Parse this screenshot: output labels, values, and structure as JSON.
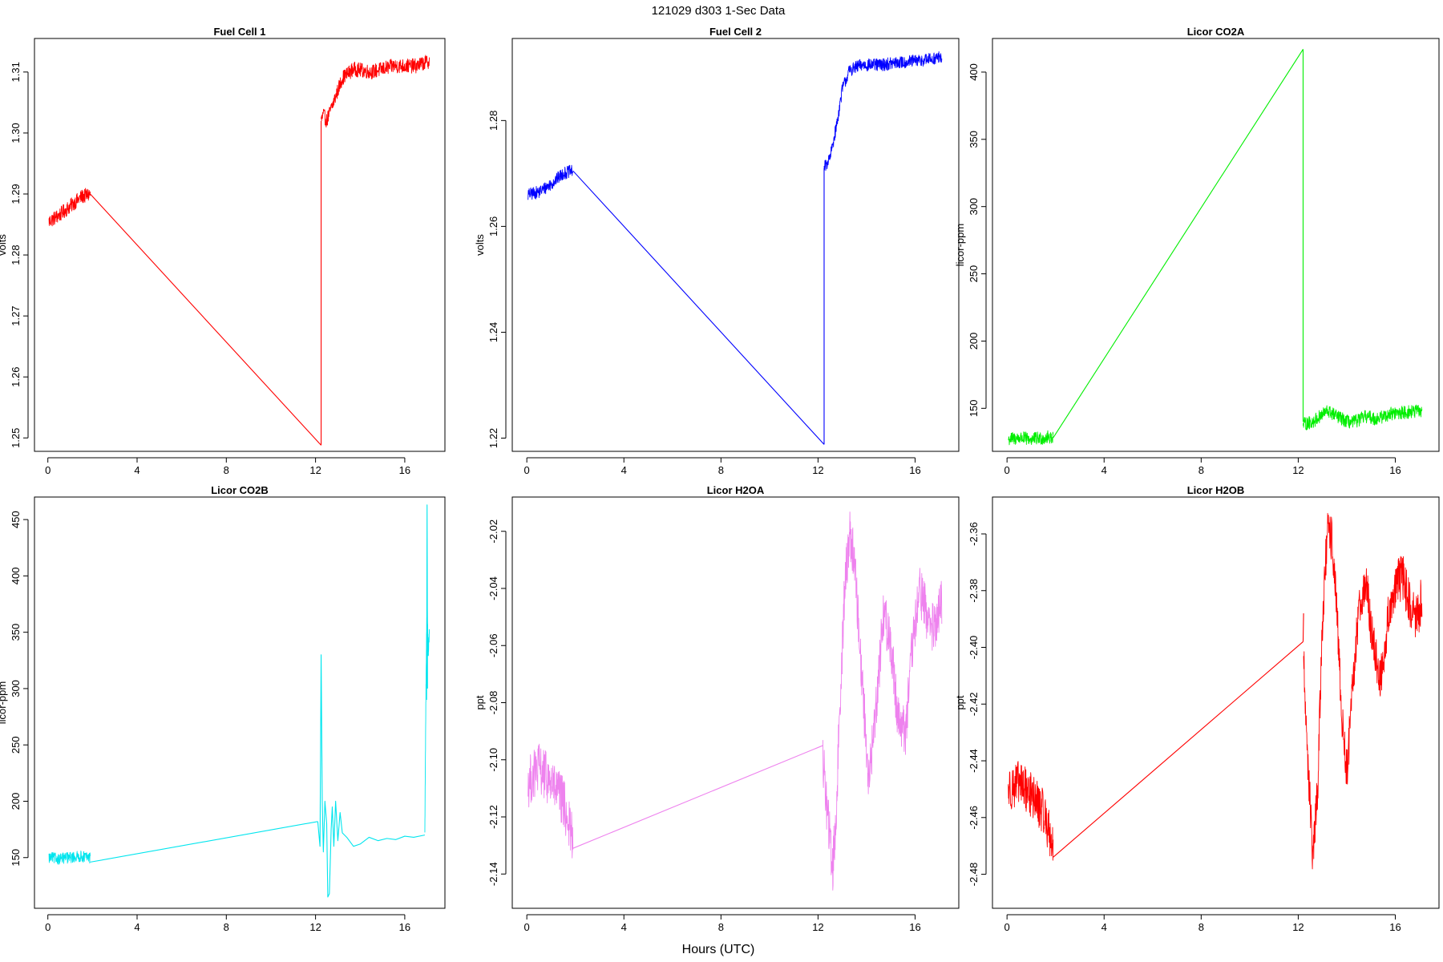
{
  "figure": {
    "title": "121029   d303   1-Sec Data",
    "xlabel": "Hours (UTC)"
  },
  "chart_data": [
    {
      "type": "line",
      "title": "Fuel Cell 1",
      "ylabel": "volts",
      "color": "#ff0000",
      "xlim": [
        -0.6,
        17.8
      ],
      "ylim": [
        1.2478,
        1.3155
      ],
      "xticks": [
        0,
        4,
        8,
        12,
        16
      ],
      "xtick_labels": [
        "0",
        "4",
        "8",
        "12",
        "16"
      ],
      "yticks": [
        1.25,
        1.26,
        1.27,
        1.28,
        1.29,
        1.3,
        1.31
      ],
      "ytick_labels": [
        "1.25",
        "1.26",
        "1.27",
        "1.28",
        "1.29",
        "1.30",
        "1.31"
      ],
      "noise": 0.0012,
      "segments": [
        {
          "kind": "noisy",
          "x": [
            0.05,
            0.5,
            1.0,
            1.5,
            1.9
          ],
          "y": [
            1.2855,
            1.2865,
            1.288,
            1.2895,
            1.29
          ]
        },
        {
          "kind": "line",
          "x": [
            1.9,
            12.25
          ],
          "y": [
            1.29,
            1.2488
          ]
        },
        {
          "kind": "line",
          "x": [
            12.25,
            12.25
          ],
          "y": [
            1.2488,
            1.302
          ]
        },
        {
          "kind": "noisy",
          "x": [
            12.25,
            12.35,
            12.5,
            12.8,
            13.2,
            13.7,
            14.5,
            15.5,
            16.5,
            17.1
          ],
          "y": [
            1.302,
            1.303,
            1.302,
            1.305,
            1.309,
            1.3105,
            1.31,
            1.311,
            1.311,
            1.3118
          ]
        }
      ]
    },
    {
      "type": "line",
      "title": "Fuel Cell 2",
      "ylabel": "volts",
      "color": "#0000ff",
      "xlim": [
        -0.6,
        17.8
      ],
      "ylim": [
        1.2175,
        1.2955
      ],
      "xticks": [
        0,
        4,
        8,
        12,
        16
      ],
      "xtick_labels": [
        "0",
        "4",
        "8",
        "12",
        "16"
      ],
      "yticks": [
        1.22,
        1.24,
        1.26,
        1.28
      ],
      "ytick_labels": [
        "1.22",
        "1.24",
        "1.26",
        "1.28"
      ],
      "noise": 0.0012,
      "segments": [
        {
          "kind": "noisy",
          "x": [
            0.05,
            0.5,
            1.0,
            1.5,
            1.9
          ],
          "y": [
            1.266,
            1.2665,
            1.268,
            1.27,
            1.2705
          ]
        },
        {
          "kind": "line",
          "x": [
            1.9,
            12.25
          ],
          "y": [
            1.2705,
            1.2188
          ]
        },
        {
          "kind": "line",
          "x": [
            12.25,
            12.25
          ],
          "y": [
            1.2188,
            1.271
          ]
        },
        {
          "kind": "noisy",
          "x": [
            12.25,
            12.5,
            12.8,
            13.0,
            13.3,
            13.8,
            14.5,
            15.5,
            16.5,
            17.1
          ],
          "y": [
            1.271,
            1.273,
            1.28,
            1.286,
            1.2895,
            1.2905,
            1.2905,
            1.291,
            1.2915,
            1.292
          ]
        }
      ]
    },
    {
      "type": "line",
      "title": "Licor CO2A",
      "ylabel": "licor-ppm",
      "color": "#00ee00",
      "xlim": [
        -0.6,
        17.8
      ],
      "ylim": [
        118,
        425
      ],
      "xticks": [
        0,
        4,
        8,
        12,
        16
      ],
      "xtick_labels": [
        "0",
        "4",
        "8",
        "12",
        "16"
      ],
      "yticks": [
        150,
        200,
        250,
        300,
        350,
        400
      ],
      "ytick_labels": [
        "150",
        "200",
        "250",
        "300",
        "350",
        "400"
      ],
      "noise": 5,
      "segments": [
        {
          "kind": "noisy",
          "x": [
            0.05,
            0.5,
            1.0,
            1.5,
            1.9
          ],
          "y": [
            127,
            128,
            127,
            128,
            129
          ]
        },
        {
          "kind": "line",
          "x": [
            1.9,
            12.2
          ],
          "y": [
            128,
            417
          ]
        },
        {
          "kind": "line",
          "x": [
            12.2,
            12.2
          ],
          "y": [
            417,
            140
          ]
        },
        {
          "kind": "noisy",
          "x": [
            12.2,
            12.6,
            13.2,
            13.8,
            14.2,
            14.8,
            15.2,
            15.8,
            16.4,
            17.1
          ],
          "y": [
            138,
            140,
            148,
            142,
            139,
            144,
            142,
            146,
            147,
            148
          ]
        }
      ]
    },
    {
      "type": "line",
      "title": "Licor CO2B",
      "ylabel": "licor-ppm",
      "color": "#00e5ee",
      "xlim": [
        -0.6,
        17.8
      ],
      "ylim": [
        105,
        470
      ],
      "xticks": [
        0,
        4,
        8,
        12,
        16
      ],
      "xtick_labels": [
        "0",
        "4",
        "8",
        "12",
        "16"
      ],
      "yticks": [
        150,
        200,
        250,
        300,
        350,
        400,
        450
      ],
      "ytick_labels": [
        "150",
        "200",
        "250",
        "300",
        "350",
        "400",
        "450"
      ],
      "noise": 5,
      "segments": [
        {
          "kind": "noisy",
          "x": [
            0.05,
            0.5,
            1.0,
            1.5,
            1.9
          ],
          "y": [
            150,
            149,
            150,
            151,
            150
          ]
        },
        {
          "kind": "line",
          "x": [
            1.9,
            12.1
          ],
          "y": [
            146,
            182
          ]
        },
        {
          "kind": "line",
          "x": [
            12.1,
            12.2,
            12.25,
            12.3,
            12.35,
            12.42,
            12.5,
            12.55,
            12.62,
            12.7,
            12.75,
            12.82,
            12.9,
            13.0,
            13.1,
            13.2,
            13.4,
            13.7,
            14.0,
            14.4,
            14.8,
            15.2,
            15.6,
            16.0,
            16.4,
            16.9
          ],
          "y": [
            182,
            160,
            330,
            200,
            155,
            200,
            180,
            115,
            118,
            175,
            195,
            160,
            200,
            165,
            190,
            172,
            168,
            160,
            162,
            168,
            165,
            167,
            166,
            169,
            168,
            170
          ]
        },
        {
          "kind": "noisy",
          "x": [
            16.9,
            16.95,
            17.0,
            17.05,
            17.1
          ],
          "y": [
            175,
            300,
            380,
            330,
            350
          ]
        },
        {
          "kind": "line",
          "x": [
            16.98,
            17.0,
            17.02
          ],
          "y": [
            290,
            463,
            300
          ]
        }
      ]
    },
    {
      "type": "line",
      "title": "Licor H2OA",
      "ylabel": "ppt",
      "color": "#ee82ee",
      "xlim": [
        -0.6,
        17.8
      ],
      "ylim": [
        -2.152,
        -2.008
      ],
      "xticks": [
        0,
        4,
        8,
        12,
        16
      ],
      "xtick_labels": [
        "0",
        "4",
        "8",
        "12",
        "16"
      ],
      "yticks": [
        -2.14,
        -2.12,
        -2.1,
        -2.08,
        -2.06,
        -2.04,
        -2.02
      ],
      "ytick_labels": [
        "-2.14",
        "-2.12",
        "-2.10",
        "-2.08",
        "-2.06",
        "-2.04",
        "-2.02"
      ],
      "noise": 0.009,
      "segments": [
        {
          "kind": "noisy",
          "x": [
            0.05,
            0.5,
            1.0,
            1.5,
            1.9
          ],
          "y": [
            -2.108,
            -2.103,
            -2.108,
            -2.115,
            -2.128
          ]
        },
        {
          "kind": "line",
          "x": [
            1.9,
            12.2
          ],
          "y": [
            -2.131,
            -2.095
          ]
        },
        {
          "kind": "noisy",
          "x": [
            12.2,
            12.4,
            12.6,
            12.75,
            12.9,
            13.1,
            13.3,
            13.5,
            13.8,
            14.1,
            14.4,
            14.7,
            15.0,
            15.3,
            15.6,
            15.9,
            16.2,
            16.5,
            16.8,
            17.1
          ],
          "y": [
            -2.1,
            -2.12,
            -2.138,
            -2.12,
            -2.08,
            -2.04,
            -2.02,
            -2.03,
            -2.07,
            -2.108,
            -2.08,
            -2.048,
            -2.06,
            -2.085,
            -2.09,
            -2.06,
            -2.04,
            -2.05,
            -2.055,
            -2.045
          ]
        }
      ]
    },
    {
      "type": "line",
      "title": "Licor H2OB",
      "ylabel": "ppt",
      "color": "#ff0000",
      "xlim": [
        -0.6,
        17.8
      ],
      "ylim": [
        -2.492,
        -2.347
      ],
      "xticks": [
        0,
        4,
        8,
        12,
        16
      ],
      "xtick_labels": [
        "0",
        "4",
        "8",
        "12",
        "16"
      ],
      "yticks": [
        -2.48,
        -2.46,
        -2.44,
        -2.42,
        -2.4,
        -2.38,
        -2.36
      ],
      "ytick_labels": [
        "-2.48",
        "-2.46",
        "-2.44",
        "-2.42",
        "-2.40",
        "-2.38",
        "-2.36"
      ],
      "noise": 0.008,
      "segments": [
        {
          "kind": "noisy",
          "x": [
            0.05,
            0.5,
            1.0,
            1.5,
            1.9
          ],
          "y": [
            -2.45,
            -2.448,
            -2.452,
            -2.458,
            -2.47
          ]
        },
        {
          "kind": "line",
          "x": [
            1.9,
            12.2
          ],
          "y": [
            -2.474,
            -2.398
          ]
        },
        {
          "kind": "line",
          "x": [
            12.2,
            12.22
          ],
          "y": [
            -2.398,
            -2.388
          ]
        },
        {
          "kind": "noisy",
          "x": [
            12.22,
            12.4,
            12.6,
            12.8,
            13.0,
            13.2,
            13.4,
            13.6,
            13.8,
            14.0,
            14.2,
            14.5,
            14.8,
            15.1,
            15.4,
            15.7,
            16.0,
            16.3,
            16.6,
            16.9,
            17.1
          ],
          "y": [
            -2.405,
            -2.44,
            -2.475,
            -2.45,
            -2.39,
            -2.36,
            -2.362,
            -2.39,
            -2.425,
            -2.445,
            -2.42,
            -2.385,
            -2.378,
            -2.4,
            -2.412,
            -2.39,
            -2.378,
            -2.375,
            -2.385,
            -2.39,
            -2.382
          ]
        }
      ]
    }
  ]
}
